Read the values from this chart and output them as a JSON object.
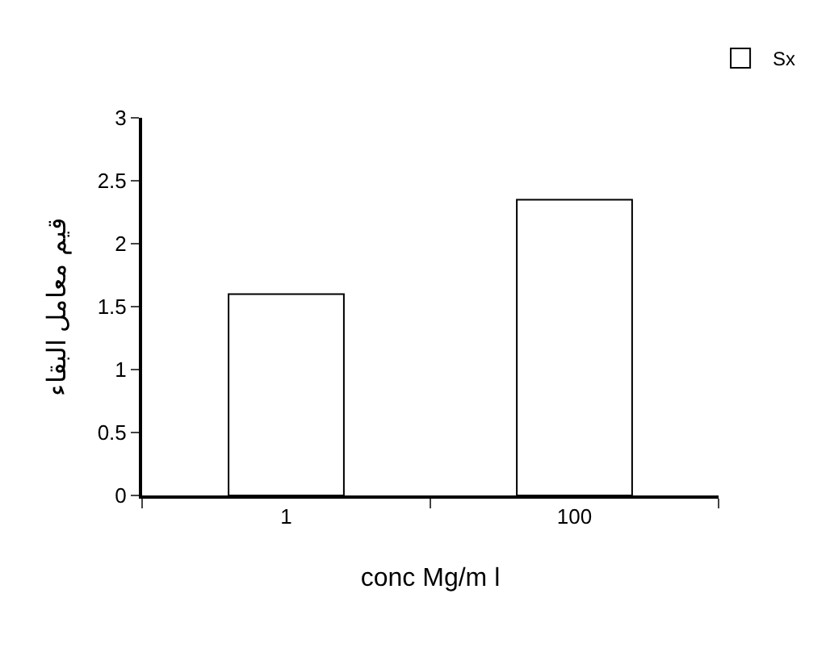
{
  "chart_data": {
    "type": "bar",
    "xlabel": "conc Mg/m l",
    "ylabel": "قيم معامل البقاء",
    "categories": [
      "1",
      "100"
    ],
    "series": [
      {
        "name": "Sx",
        "color": "#ffffff",
        "values": [
          1.6,
          2.35
        ]
      }
    ],
    "ylim": [
      0,
      3
    ],
    "yticks": [
      0,
      0.5,
      1,
      1.5,
      2,
      2.5,
      3
    ],
    "legend": "top right"
  }
}
